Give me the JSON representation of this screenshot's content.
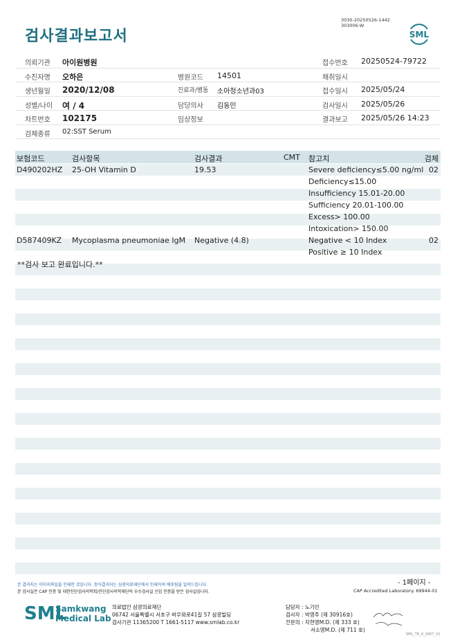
{
  "header": {
    "title": "검사결과보고서",
    "doc_id_1": "3030-20250526-1442",
    "doc_id_2": "303006-W",
    "logo": "SML"
  },
  "info": {
    "institution_label": "의뢰기관",
    "institution": "아이원병원",
    "receipt_no_label": "접수번호",
    "receipt_no": "20250524-79722",
    "patient_label": "수진자명",
    "patient": "오하은",
    "hospital_code_label": "병원코드",
    "hospital_code": "14501",
    "collect_label": "채취일시",
    "collect": "",
    "dob_label": "생년월일",
    "dob": "2020/12/08",
    "dept_label": "진료과/병동",
    "dept": "소아청소년과03",
    "receipt_date_label": "접수일시",
    "receipt_date": "2025/05/24",
    "sex_age_label": "성별/나이",
    "sex_age": "여 / 4",
    "doctor_label": "담당의사",
    "doctor": "김동인",
    "test_date_label": "검사일시",
    "test_date": "2025/05/26",
    "chart_label": "차트번호",
    "chart": "102175",
    "clinical_label": "임상정보",
    "clinical": "",
    "report_label": "결과보고",
    "report": "2025/05/26 14:23",
    "specimen_label": "검체종류",
    "specimen": "02:SST Serum"
  },
  "table": {
    "headers": {
      "code": "보험코드",
      "item": "검사항목",
      "result": "검사결과",
      "cmt": "CMT",
      "ref": "참고치",
      "specimen": "검체"
    },
    "rows": [
      {
        "code": "D490202HZ",
        "item": "25-OH Vitamin D",
        "result": "19.53",
        "ref": "Severe deficiency≤5.00 ng/ml",
        "specimen": "02"
      },
      {
        "code": "",
        "item": "",
        "result": "",
        "ref": "Deficiency≤15.00",
        "specimen": ""
      },
      {
        "code": "",
        "item": "",
        "result": "",
        "ref": "Insufficiency 15.01-20.00",
        "specimen": ""
      },
      {
        "code": "",
        "item": "",
        "result": "",
        "ref": "Sufficiency 20.01-100.00",
        "specimen": ""
      },
      {
        "code": "",
        "item": "",
        "result": "",
        "ref": "Excess> 100.00",
        "specimen": ""
      },
      {
        "code": "",
        "item": "",
        "result": "",
        "ref": "Intoxication> 150.00",
        "specimen": ""
      },
      {
        "code": "D587409KZ",
        "item": "Mycoplasma pneumoniae IgM",
        "result": "Negative (4.8)",
        "ref": "Negative < 10 Index",
        "specimen": "02"
      },
      {
        "code": "",
        "item": "",
        "result": "",
        "ref": "Positive ≥ 10 Index",
        "specimen": ""
      }
    ],
    "completion": "**검사 보고 완료입니다.**"
  },
  "footer": {
    "notice1": "본 결과지는 이미지파일을 인쇄한 것입니다. 정식결과지는 삼광의료재단에서 인쇄하여 배포됨을 알려드립니다.",
    "notice2": "본 검사실은 CAP 인증 및 대한진단검사의학회/진단검사의학재단의 우수검사실 신임 인증을 받은 검사실입니다.",
    "page": "- 1페이지 -",
    "cap": "CAP Accredited Laboratory. 69944-01",
    "lab_logo": "SML",
    "lab_name_1": "Samkwang",
    "lab_name_2": "Medical Lab",
    "org_1": "의료법인 삼광의료재단",
    "org_2": "06742 서울특별시 서초구 바우뫼로41길 57 삼광빌딩",
    "org_3": "검사기관 11365200 T 1661-5117 www.smlab.co.kr",
    "staff_1": "담당자 :  노기민",
    "staff_2": "검사자 :  박영주 (제 30916호)",
    "staff_3": "전문의 :  지현영M.D. (제 333 호)",
    "staff_4": "서소영M.D. (제 711 호)",
    "version": "SML_TR_A_2407_V1"
  }
}
